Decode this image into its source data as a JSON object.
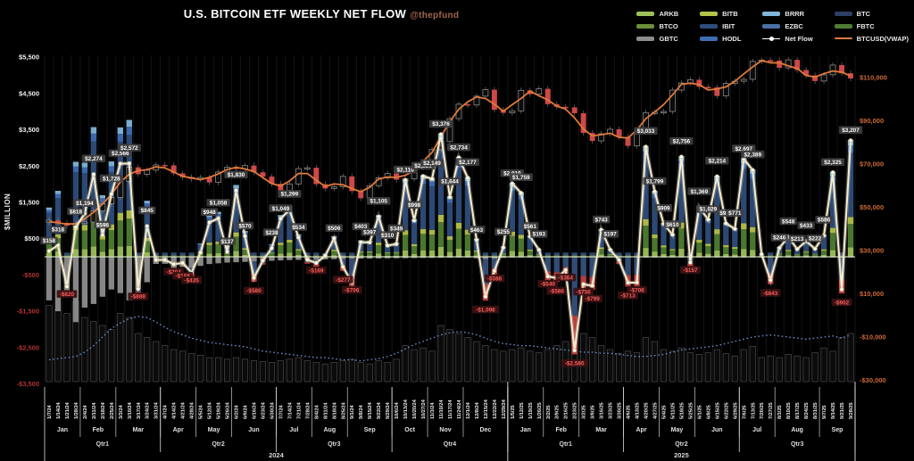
{
  "title": "U.S. BITCOIN ETF WEEKLY NET FLOW",
  "subtitle": "@thepfund",
  "colors": {
    "netflow": "#f5ecd0",
    "vwap": "#e0793a",
    "candle_down": "#d84b4b",
    "dotted": "#6a93cc",
    "neg_tick": "#b23232",
    "right_tick": "#cc6a35",
    "arkb": "#9dc05a",
    "btco": "#6b8e3a",
    "gbtc": "#8d8d8d",
    "bitb": "#b5c24b",
    "ibit": "#2e4d7b",
    "hodl": "#3f6db5",
    "brrr": "#7fb6d9",
    "ezbc": "#4a6fa5",
    "btc": "#2b3f66",
    "fbtc": "#4e7d32",
    "neg_blue": "#35507c",
    "neg_red": "#bf4040"
  },
  "legend": [
    {
      "label": "ARKB",
      "color": "#9dc05a",
      "kind": "bar"
    },
    {
      "label": "BTCO",
      "color": "#6b8e3a",
      "kind": "bar"
    },
    {
      "label": "GBTC",
      "color": "#8d8d8d",
      "kind": "bar"
    },
    {
      "label": "BITB",
      "color": "#b5c24b",
      "kind": "bar"
    },
    {
      "label": "IBIT",
      "color": "#2e4d7b",
      "kind": "bar"
    },
    {
      "label": "HODL",
      "color": "#3f6db5",
      "kind": "bar"
    },
    {
      "label": "BRRR",
      "color": "#7fb6d9",
      "kind": "bar"
    },
    {
      "label": "EZBC",
      "color": "#4a6fa5",
      "kind": "bar"
    },
    {
      "label": "Net Flow",
      "color": "#ffffff",
      "kind": "line-dot"
    },
    {
      "label": "BTC",
      "color": "#2b3f66",
      "kind": "bar"
    },
    {
      "label": "FBTC",
      "color": "#4e7d32",
      "kind": "bar"
    },
    {
      "label": "BTCUSD(VWAP)",
      "color": "#e0793a",
      "kind": "line"
    }
  ],
  "axes": {
    "left": {
      "title": "$MILLION",
      "ticks": [
        {
          "label": "$5,500",
          "value": 5500
        },
        {
          "label": "$4,500",
          "value": 4500
        },
        {
          "label": "$3,500",
          "value": 3500
        },
        {
          "label": "$2,500",
          "value": 2500
        },
        {
          "label": "$1,500",
          "value": 1500
        },
        {
          "label": "$500",
          "value": 500
        },
        {
          "label": "-$500",
          "value": -500
        },
        {
          "label": "-$1,500",
          "value": -1500
        },
        {
          "label": "-$2,500",
          "value": -2500
        },
        {
          "label": "-$3,500",
          "value": -3500
        }
      ]
    },
    "right": {
      "ticks": [
        {
          "label": "$110,000",
          "value": 110000
        },
        {
          "label": "$90,000",
          "value": 90000
        },
        {
          "label": "$70,000",
          "value": 70000
        },
        {
          "label": "$50,000",
          "value": 50000
        },
        {
          "label": "$30,000",
          "value": 30000
        },
        {
          "label": "$10,000",
          "value": 10000
        },
        {
          "label": "-$10,000",
          "value": -10000
        },
        {
          "label": "-$30,000",
          "value": -30000
        }
      ]
    }
  },
  "chart_data": {
    "type": "composite",
    "subtypes": [
      "stacked-bar",
      "line",
      "candlestick"
    ],
    "title": "U.S. BITCOIN ETF WEEKLY NET FLOW",
    "ylabel_left": "$MILLION",
    "ylim_left": [
      -3500,
      5500
    ],
    "ylim_right": [
      -30000,
      110000
    ],
    "weeks": [
      "1/7/24",
      "1/14/24",
      "1/21/24",
      "1/28/24",
      "2/4/24",
      "2/11/24",
      "2/18/24",
      "2/25/24",
      "3/3/24",
      "3/10/24",
      "3/17/24",
      "3/24/24",
      "3/31/24",
      "4/7/24",
      "4/14/24",
      "4/21/24",
      "4/28/24",
      "5/5/24",
      "5/12/24",
      "5/19/24",
      "5/26/24",
      "6/2/24",
      "6/9/24",
      "6/16/24",
      "6/23/24",
      "6/30/24",
      "7/7/24",
      "7/14/24",
      "7/21/24",
      "7/28/24",
      "8/4/24",
      "8/11/24",
      "8/18/24",
      "8/25/24",
      "9/1/24",
      "9/8/24",
      "9/15/24",
      "9/22/24",
      "9/29/24",
      "10/6/24",
      "10/13/24",
      "10/20/24",
      "10/27/24",
      "11/3/24",
      "11/10/24",
      "11/17/24",
      "11/24/24",
      "12/1/24",
      "12/8/24",
      "12/15/24",
      "12/22/24",
      "12/29/24",
      "1/5/25",
      "1/12/25",
      "1/19/25",
      "1/26/25",
      "2/2/25",
      "2/9/25",
      "2/16/25",
      "2/23/25",
      "3/2/25",
      "3/9/25",
      "3/16/25",
      "3/23/25",
      "3/30/25",
      "4/6/25",
      "4/13/25",
      "4/20/25",
      "4/27/25",
      "5/4/25",
      "5/11/25",
      "5/18/25",
      "5/25/25",
      "6/1/25",
      "6/8/25",
      "6/15/25",
      "6/22/25",
      "6/29/25",
      "7/6/25",
      "7/13/25",
      "7/20/25",
      "7/27/25",
      "8/3/25",
      "8/10/25",
      "8/17/25",
      "8/24/25",
      "8/31/25",
      "9/7/25",
      "9/14/25",
      "9/21/25",
      "9/28/25"
    ],
    "net_flow": [
      158,
      318,
      -820,
      818,
      1194,
      2274,
      598,
      1728,
      2566,
      2572,
      -888,
      845,
      -86,
      -83,
      -204,
      -168,
      -435,
      116,
      948,
      1058,
      137,
      1830,
      570,
      -580,
      -105,
      238,
      1049,
      1299,
      534,
      -80,
      -169,
      32,
      506,
      -277,
      -706,
      403,
      397,
      1105,
      310,
      349,
      2116,
      998,
      2221,
      2149,
      3376,
      1644,
      2734,
      2177,
      463,
      -1098,
      -388,
      255,
      2019,
      1759,
      561,
      193,
      -540,
      -586,
      -364,
      -2580,
      -756,
      -799,
      743,
      197,
      -93,
      -713,
      -708,
      3033,
      1799,
      909,
      610,
      2756,
      -157,
      1369,
      1029,
      2214,
      921,
      771,
      2697,
      2389,
      72,
      -643,
      246,
      548,
      213,
      433,
      222,
      586,
      2325,
      -902,
      3207
    ],
    "btc_close": [
      44000,
      42800,
      41500,
      42500,
      43200,
      48300,
      51600,
      54500,
      62000,
      68500,
      65300,
      67200,
      69600,
      69400,
      65700,
      64000,
      63100,
      63800,
      61500,
      66300,
      68500,
      67700,
      69300,
      66200,
      64200,
      60900,
      57800,
      60800,
      67900,
      68300,
      60700,
      58700,
      59500,
      64300,
      57500,
      54200,
      60000,
      63600,
      65600,
      62800,
      63200,
      68400,
      69000,
      76700,
      80400,
      91000,
      97700,
      97300,
      101400,
      104400,
      95100,
      93700,
      94600,
      104100,
      102300,
      104800,
      97700,
      96500,
      96200,
      93500,
      84400,
      80700,
      84000,
      86100,
      82600,
      78400,
      85200,
      93800,
      94000,
      94300,
      104200,
      107500,
      109000,
      105700,
      105500,
      101500,
      107300,
      108300,
      109200,
      117500,
      118100,
      117900,
      114500,
      118200,
      113500,
      111000,
      108400,
      111300,
      115800,
      112000,
      109600
    ],
    "gbtc_flow": [
      -1200,
      -1500,
      -2100,
      -1800,
      -1400,
      -1300,
      -1100,
      -900,
      -1000,
      -1200,
      -900,
      -700,
      -600,
      -500,
      -400,
      -350,
      -300,
      -250,
      -200,
      -180,
      -160,
      -150,
      -140,
      -130,
      -120,
      -110,
      -100,
      -90,
      -85,
      -80,
      -75,
      -70,
      -65,
      -60,
      -55,
      -50,
      -48,
      -45,
      -42,
      -40,
      -38,
      -35,
      -32,
      -30,
      -28,
      -25,
      -22,
      -20,
      -40,
      -60,
      -50,
      -30,
      -20,
      -20,
      -20,
      -20,
      -20,
      -20,
      -20,
      -20,
      -20,
      -20,
      -20,
      -20,
      -20,
      -20,
      -20,
      -20,
      -20,
      -20,
      -20,
      -20,
      -20,
      -20,
      -20,
      -20,
      -20,
      -20,
      -20,
      -20,
      -20,
      -20,
      -20,
      -20,
      -20,
      -20,
      -20,
      -20,
      -20,
      -20,
      -20
    ],
    "volume_rel": [
      95,
      90,
      85,
      100,
      80,
      75,
      70,
      65,
      85,
      80,
      60,
      55,
      50,
      45,
      40,
      38,
      35,
      33,
      30,
      30,
      28,
      30,
      28,
      26,
      25,
      24,
      26,
      28,
      30,
      26,
      24,
      22,
      24,
      26,
      28,
      24,
      22,
      26,
      24,
      28,
      45,
      40,
      42,
      38,
      70,
      65,
      60,
      55,
      50,
      45,
      40,
      38,
      40,
      42,
      38,
      36,
      40,
      45,
      50,
      75,
      60,
      55,
      45,
      40,
      35,
      38,
      36,
      55,
      50,
      40,
      38,
      42,
      36,
      34,
      36,
      40,
      35,
      32,
      40,
      44,
      30,
      32,
      30,
      34,
      32,
      30,
      36,
      42,
      38,
      55,
      60
    ],
    "dotted_btc": [
      -20500,
      -20000,
      -19500,
      -19000,
      -17000,
      -14000,
      -10000,
      -6000,
      -3500,
      -1500,
      -500,
      -1000,
      -3000,
      -5500,
      -7500,
      -9000,
      -10500,
      -11500,
      -12500,
      -13000,
      -13500,
      -14000,
      -14500,
      -15500,
      -16500,
      -17000,
      -17500,
      -18000,
      -18500,
      -19000,
      -19500,
      -19500,
      -20000,
      -20500,
      -20500,
      -21000,
      -20500,
      -20000,
      -19000,
      -17500,
      -15500,
      -13500,
      -12000,
      -10500,
      -9000,
      -8000,
      -7500,
      -8000,
      -9000,
      -10500,
      -12000,
      -13000,
      -13500,
      -14000,
      -14000,
      -14500,
      -15000,
      -15500,
      -16000,
      -16500,
      -17000,
      -17000,
      -17500,
      -17500,
      -18000,
      -18500,
      -19000,
      -19000,
      -18500,
      -18000,
      -17000,
      -16000,
      -15500,
      -15000,
      -14500,
      -14000,
      -13000,
      -12000,
      -11000,
      -10000,
      -9500,
      -9000,
      -9500,
      -10000,
      -10500,
      -11000,
      -10500,
      -10000,
      -9500,
      -10500,
      -9000
    ],
    "stack_fractions": {
      "arkb": 0.08,
      "fbtc": 0.2,
      "bitb": 0.06,
      "ibit": 0.55,
      "hodl": 0.06,
      "brrr": 0.05
    },
    "months": [
      {
        "label": "Jan",
        "weeks": 4
      },
      {
        "label": "Feb",
        "weeks": 4
      },
      {
        "label": "Mar",
        "weeks": 5
      },
      {
        "label": "Apr",
        "weeks": 4
      },
      {
        "label": "May",
        "weeks": 4
      },
      {
        "label": "Jun",
        "weeks": 5
      },
      {
        "label": "Jul",
        "weeks": 4
      },
      {
        "label": "Aug",
        "weeks": 4
      },
      {
        "label": "Sep",
        "weeks": 5
      },
      {
        "label": "Oct",
        "weeks": 4
      },
      {
        "label": "Nov",
        "weeks": 4
      },
      {
        "label": "Dec",
        "weeks": 5
      },
      {
        "label": "Jan",
        "weeks": 4
      },
      {
        "label": "Feb",
        "weeks": 4
      },
      {
        "label": "Mar",
        "weeks": 5
      },
      {
        "label": "Apr",
        "weeks": 4
      },
      {
        "label": "May",
        "weeks": 4
      },
      {
        "label": "Jun",
        "weeks": 5
      },
      {
        "label": "Jul",
        "weeks": 4
      },
      {
        "label": "Aug",
        "weeks": 5
      },
      {
        "label": "Sep",
        "weeks": 4
      }
    ],
    "quarters": [
      {
        "label": "Qtr1",
        "weeks": 13
      },
      {
        "label": "Qtr2",
        "weeks": 13
      },
      {
        "label": "Qtr3",
        "weeks": 13
      },
      {
        "label": "Qtr4",
        "weeks": 13
      },
      {
        "label": "Qtr1",
        "weeks": 13
      },
      {
        "label": "Qtr2",
        "weeks": 13
      },
      {
        "label": "Qtr3",
        "weeks": 13
      }
    ],
    "years": [
      {
        "label": "2024",
        "weeks": 52
      },
      {
        "label": "2025",
        "weeks": 39
      }
    ]
  }
}
